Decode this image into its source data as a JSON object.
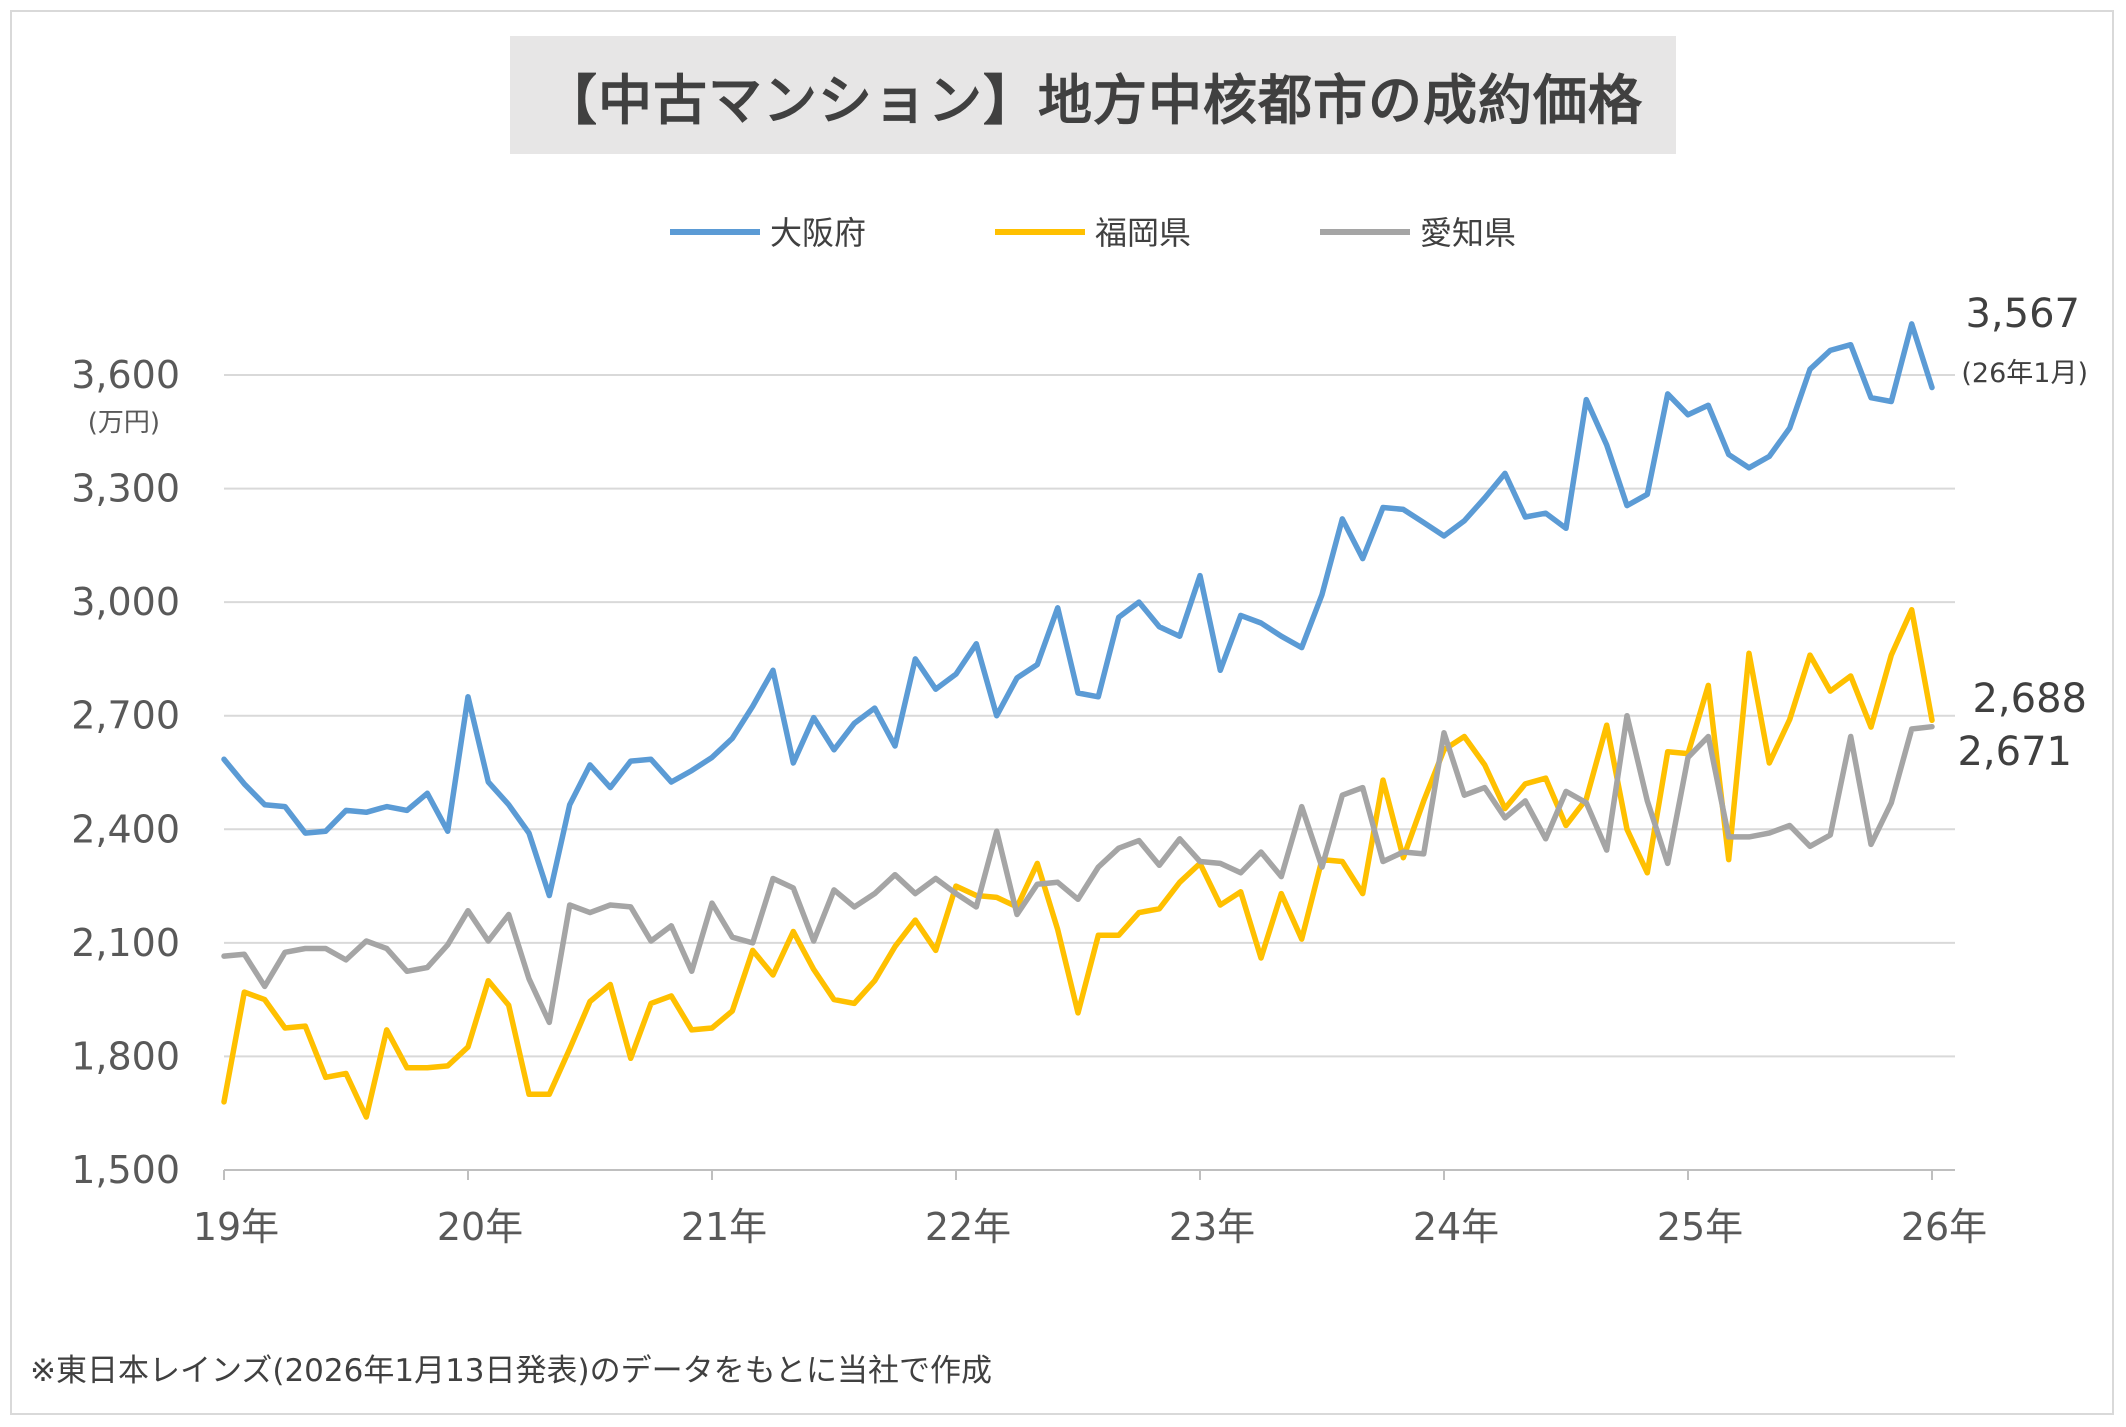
{
  "chart_data": {
    "type": "line",
    "title": "【中古マンション】地方中核都市の成約価格",
    "ylabel": "(万円)",
    "xlabel": "",
    "ylim": [
      1500,
      3600
    ],
    "y_ticks": [
      1500,
      1800,
      2100,
      2400,
      2700,
      3000,
      3300,
      3600
    ],
    "y_tick_labels": [
      "1,500",
      "1,800",
      "2,100",
      "2,400",
      "2,700",
      "3,000",
      "3,300",
      "3,600"
    ],
    "x_tick_labels": [
      "19年",
      "20年",
      "21年",
      "22年",
      "23年",
      "24年",
      "25年",
      "26年"
    ],
    "x_start": "2019-01",
    "x_end": "2026-01",
    "grid": true,
    "legend_position": "top",
    "series": [
      {
        "name": "大阪府",
        "color": "#5b9bd5",
        "values": [
          2585,
          2520,
          2465,
          2460,
          2390,
          2395,
          2450,
          2445,
          2460,
          2450,
          2495,
          2395,
          2750,
          2525,
          2465,
          2390,
          2225,
          2465,
          2570,
          2510,
          2580,
          2585,
          2525,
          2555,
          2590,
          2640,
          2725,
          2820,
          2575,
          2695,
          2610,
          2680,
          2720,
          2620,
          2850,
          2770,
          2810,
          2890,
          2700,
          2800,
          2835,
          2985,
          2760,
          2750,
          2960,
          3000,
          2935,
          2910,
          3070,
          2820,
          2965,
          2945,
          2910,
          2880,
          3020,
          3220,
          3115,
          3250,
          3245,
          3210,
          3175,
          3215,
          3275,
          3340,
          3225,
          3235,
          3195,
          3535,
          3415,
          3255,
          3285,
          3550,
          3495,
          3520,
          3390,
          3355,
          3385,
          3460,
          3615,
          3665,
          3680,
          3540,
          3530,
          3735,
          3567
        ]
      },
      {
        "name": "福岡県",
        "color": "#ffc000",
        "values": [
          1680,
          1970,
          1950,
          1875,
          1880,
          1745,
          1755,
          1640,
          1870,
          1770,
          1770,
          1775,
          1825,
          2000,
          1935,
          1700,
          1700,
          1820,
          1945,
          1990,
          1795,
          1940,
          1960,
          1870,
          1875,
          1920,
          2080,
          2015,
          2130,
          2030,
          1950,
          1940,
          2000,
          2090,
          2160,
          2080,
          2250,
          2225,
          2220,
          2195,
          2310,
          2135,
          1915,
          2120,
          2120,
          2180,
          2190,
          2260,
          2310,
          2200,
          2235,
          2060,
          2230,
          2110,
          2320,
          2315,
          2230,
          2530,
          2325,
          2475,
          2610,
          2645,
          2570,
          2455,
          2520,
          2535,
          2410,
          2480,
          2675,
          2400,
          2285,
          2605,
          2600,
          2780,
          2320,
          2865,
          2575,
          2690,
          2860,
          2765,
          2805,
          2670,
          2860,
          2980,
          2688
        ]
      },
      {
        "name": "愛知県",
        "color": "#a5a5a5",
        "values": [
          2065,
          2070,
          1985,
          2075,
          2085,
          2085,
          2055,
          2105,
          2085,
          2025,
          2035,
          2095,
          2185,
          2105,
          2175,
          2005,
          1890,
          2200,
          2180,
          2200,
          2195,
          2105,
          2145,
          2025,
          2205,
          2115,
          2100,
          2270,
          2245,
          2105,
          2240,
          2195,
          2230,
          2280,
          2230,
          2270,
          2230,
          2195,
          2395,
          2175,
          2255,
          2260,
          2215,
          2300,
          2350,
          2370,
          2305,
          2375,
          2315,
          2310,
          2285,
          2340,
          2275,
          2460,
          2300,
          2490,
          2510,
          2315,
          2340,
          2335,
          2655,
          2490,
          2510,
          2430,
          2475,
          2375,
          2500,
          2470,
          2345,
          2700,
          2475,
          2310,
          2590,
          2645,
          2380,
          2380,
          2390,
          2410,
          2355,
          2385,
          2645,
          2360,
          2470,
          2665,
          2671
        ]
      }
    ],
    "annotations": [
      {
        "series": "大阪府",
        "value_text": "3,567",
        "note": "(26年1月)"
      },
      {
        "series": "福岡県",
        "value_text": "2,688"
      },
      {
        "series": "愛知県",
        "value_text": "2,671"
      }
    ]
  },
  "source_note": "※東日本レインズ(2026年1月13日発表)のデータをもとに当社で作成"
}
